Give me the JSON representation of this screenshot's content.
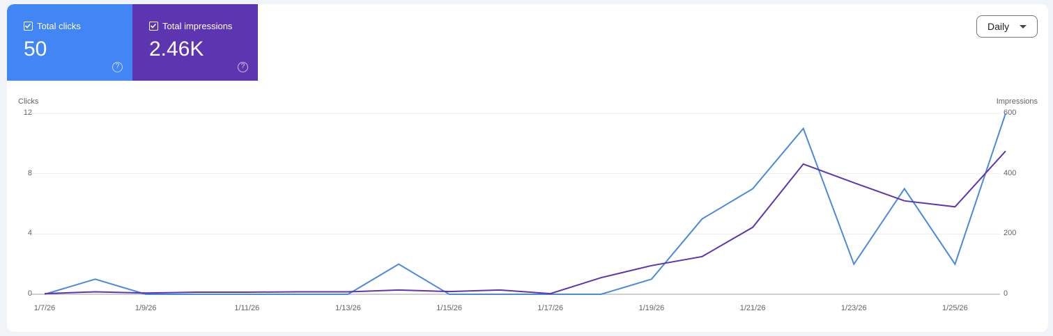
{
  "metrics": {
    "clicks": {
      "label": "Total clicks",
      "value": "50",
      "color": "#4285f4",
      "checked": true
    },
    "impressions": {
      "label": "Total impressions",
      "value": "2.46K",
      "color": "#5e35b1",
      "checked": true
    },
    "help_glyph": "?"
  },
  "controls": {
    "granularity": "Daily"
  },
  "axes": {
    "left_title": "Clicks",
    "right_title": "Impressions",
    "left_ticks": [
      "12",
      "8",
      "4",
      "0"
    ],
    "right_ticks": [
      "600",
      "400",
      "200",
      "0"
    ],
    "x_ticks": [
      "1/7/26",
      "1/9/26",
      "1/11/26",
      "1/13/26",
      "1/15/26",
      "1/17/26",
      "1/19/26",
      "1/21/26",
      "1/23/26",
      "1/25/26"
    ]
  },
  "chart_data": {
    "type": "line",
    "title": "",
    "x": [
      "1/7/26",
      "1/8/26",
      "1/9/26",
      "1/10/26",
      "1/11/26",
      "1/12/26",
      "1/13/26",
      "1/14/26",
      "1/15/26",
      "1/16/26",
      "1/17/26",
      "1/18/26",
      "1/19/26",
      "1/20/26",
      "1/21/26",
      "1/22/26",
      "1/23/26",
      "1/24/26",
      "1/25/26",
      "1/26/26"
    ],
    "series": [
      {
        "name": "Clicks",
        "axis": "left",
        "color": "#4a89dc",
        "values": [
          0,
          1,
          0,
          0,
          0,
          0,
          0,
          2,
          0,
          0,
          0,
          0,
          1,
          5,
          7,
          11,
          2,
          7,
          2,
          12
        ]
      },
      {
        "name": "Impressions",
        "axis": "right",
        "color": "#5e35b1",
        "values": [
          2,
          8,
          4,
          7,
          7,
          8,
          8,
          14,
          9,
          14,
          2,
          55,
          95,
          125,
          222,
          432,
          370,
          310,
          290,
          475
        ]
      }
    ],
    "xlabel": "",
    "ylabel": "Clicks",
    "y2label": "Impressions",
    "ylim": [
      0,
      12
    ],
    "y2lim": [
      0,
      600
    ],
    "grid": true,
    "legend": "metric cards (top-left)"
  }
}
